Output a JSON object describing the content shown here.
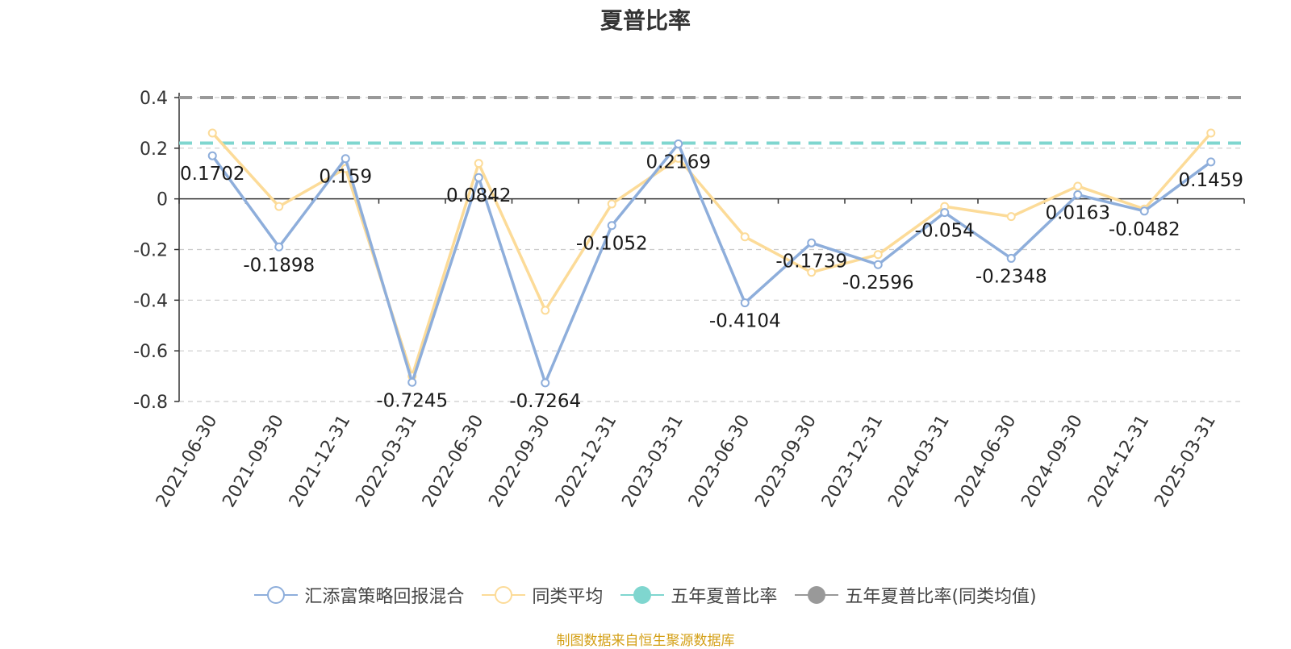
{
  "chart_data": {
    "type": "line",
    "title": "夏普比率",
    "categories": [
      "2021-06-30",
      "2021-09-30",
      "2021-12-31",
      "2022-03-31",
      "2022-06-30",
      "2022-09-30",
      "2022-12-31",
      "2023-03-31",
      "2023-06-30",
      "2023-09-30",
      "2023-12-31",
      "2024-03-31",
      "2024-06-30",
      "2024-09-30",
      "2024-12-31",
      "2025-03-31"
    ],
    "ylim": [
      -0.8,
      0.4
    ],
    "yticks": [
      "0.4",
      "0.2",
      "0",
      "-0.2",
      "-0.4",
      "-0.6",
      "-0.8"
    ],
    "grid": true,
    "legend_position": "bottom",
    "series": [
      {
        "name": "汇添富策略回报混合",
        "color": "#8eaedb",
        "values": [
          0.1702,
          -0.1898,
          0.159,
          -0.7245,
          0.0842,
          -0.7264,
          -0.1052,
          0.2169,
          -0.4104,
          -0.1739,
          -0.2596,
          -0.054,
          -0.2348,
          0.0163,
          -0.0482,
          0.1459
        ],
        "labels": [
          "0.1702",
          "-0.1898",
          "0.159",
          "-0.7245",
          "0.0842",
          "-0.7264",
          "-0.1052",
          "0.2169",
          "-0.4104",
          "-0.1739",
          "-0.2596",
          "-0.054",
          "-0.2348",
          "0.0163",
          "-0.0482",
          "0.1459"
        ]
      },
      {
        "name": "同类平均",
        "color": "#fcdb98",
        "values": [
          0.26,
          -0.03,
          0.12,
          -0.7,
          0.14,
          -0.44,
          -0.02,
          0.16,
          -0.15,
          -0.29,
          -0.22,
          -0.03,
          -0.07,
          0.05,
          -0.04,
          0.26
        ]
      },
      {
        "name": "五年夏普比率",
        "color": "#7fd6cf",
        "style": "dashed",
        "value": 0.22
      },
      {
        "name": "五年夏普比率(同类均值)",
        "color": "#999999",
        "style": "dashed",
        "value": 0.4
      }
    ]
  },
  "source_note": "制图数据来自恒生聚源数据库"
}
